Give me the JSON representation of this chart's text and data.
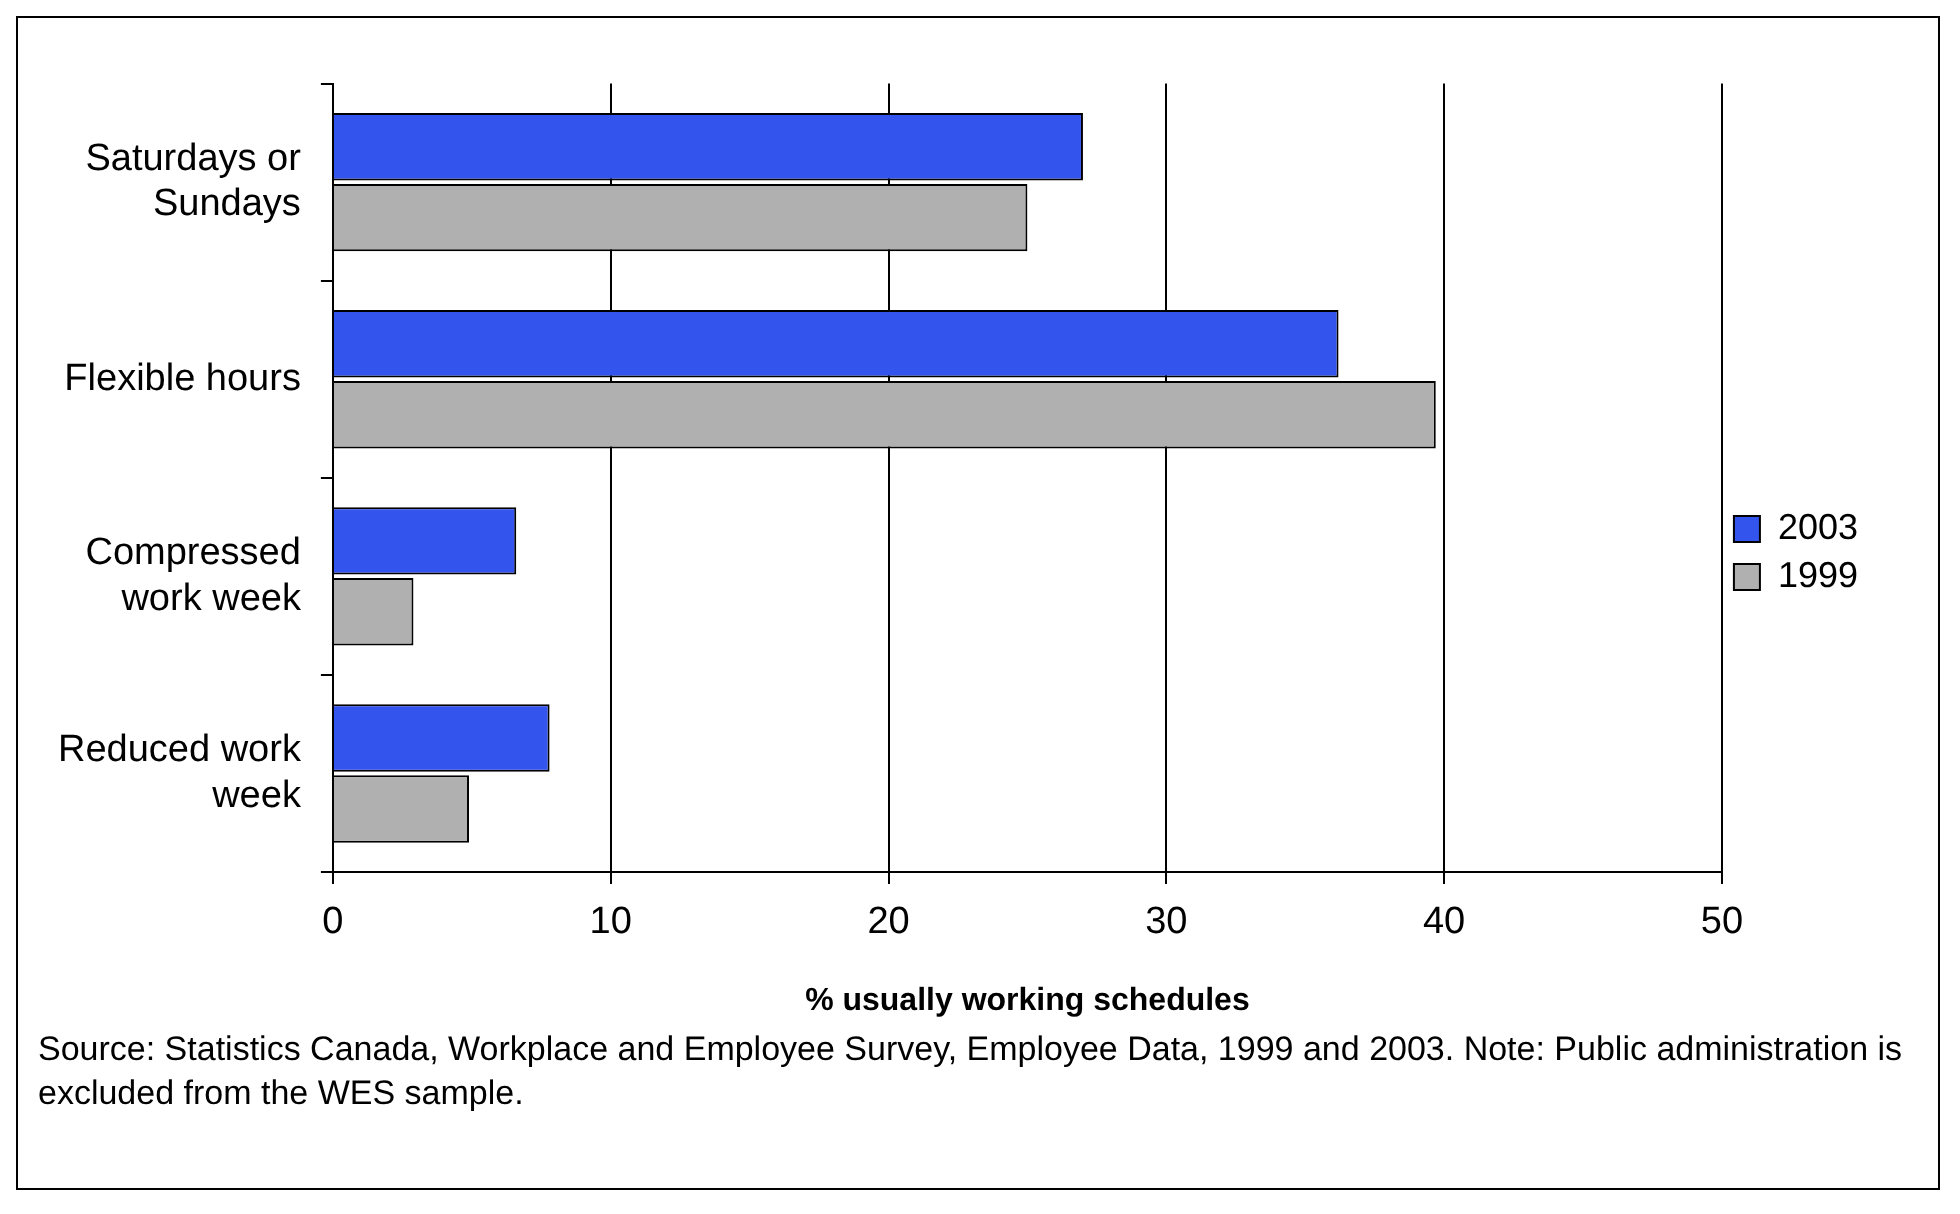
{
  "chart_data": {
    "type": "bar",
    "orientation": "horizontal",
    "categories": [
      "Saturdays or Sundays",
      "Flexible hours",
      "Compressed work week",
      "Reduced work week"
    ],
    "series": [
      {
        "name": "2003",
        "color": "#3355ee",
        "values": [
          27,
          36.2,
          6.6,
          7.8
        ]
      },
      {
        "name": "1999",
        "color": "#b0b0b0",
        "values": [
          25,
          39.7,
          2.9,
          4.9
        ]
      }
    ],
    "xlim": [
      0,
      50
    ],
    "xticks": [
      0,
      10,
      20,
      30,
      40,
      50
    ],
    "xlabel": "% usually working schedules",
    "grid": "x",
    "legend": "right",
    "annotations": [
      "Source: Statistics Canada, Workplace and Employee Survey, Employee Data, 1999 and 2003. Note: Public administration is excluded from the WES sample."
    ]
  }
}
